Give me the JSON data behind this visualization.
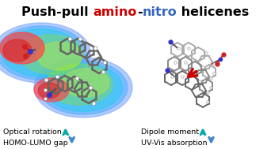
{
  "title_segments": [
    {
      "text": "Push-pull ",
      "color": "#000000",
      "bold": true
    },
    {
      "text": "amino",
      "color": "#cc0000",
      "bold": true
    },
    {
      "text": "-",
      "color": "#000000",
      "bold": true
    },
    {
      "text": "nitro",
      "color": "#3366bb",
      "bold": true
    },
    {
      "text": " helicenes",
      "color": "#000000",
      "bold": true
    }
  ],
  "title_fontsize": 11.5,
  "label_fontsize": 6.8,
  "up_arrow_color": "#00aaaa",
  "down_arrow_color": "#4488cc",
  "background_color": "#ffffff",
  "left_labels": [
    {
      "text": "Optical rotation",
      "arrow": "up"
    },
    {
      "text": "HOMO-LUMO gap",
      "arrow": "down"
    }
  ],
  "right_labels": [
    {
      "text": "Dipole moment",
      "arrow": "up"
    },
    {
      "text": "UV-Vis absorption",
      "arrow": "down"
    }
  ]
}
